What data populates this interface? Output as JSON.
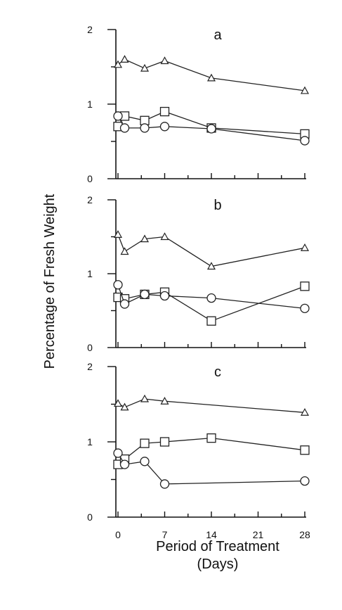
{
  "chart_data": {
    "type": "line",
    "ylabel": "Percentage of Fresh Weight",
    "xlabel_line1": "Period of Treatment",
    "xlabel_line2": "(Days)",
    "xlim": [
      0,
      28
    ],
    "xticks": [
      0,
      7,
      14,
      21,
      28
    ],
    "ylim": [
      0,
      2
    ],
    "yticks": [
      0,
      1,
      2
    ],
    "grid": false,
    "legend": "none",
    "panels": [
      {
        "label": "a",
        "series": [
          {
            "marker": "triangle",
            "x": [
              0,
              1,
              4,
              7,
              14,
              28
            ],
            "values": [
              1.53,
              1.6,
              1.48,
              1.58,
              1.35,
              1.18
            ]
          },
          {
            "marker": "square",
            "x": [
              0,
              1,
              4,
              7,
              14,
              28
            ],
            "values": [
              0.7,
              0.84,
              0.78,
              0.9,
              0.68,
              0.6
            ]
          },
          {
            "marker": "circle",
            "x": [
              0,
              1,
              4,
              7,
              14,
              28
            ],
            "values": [
              0.84,
              0.68,
              0.68,
              0.7,
              0.67,
              0.51
            ]
          }
        ]
      },
      {
        "label": "b",
        "series": [
          {
            "marker": "triangle",
            "x": [
              0,
              1,
              4,
              7,
              14,
              28
            ],
            "values": [
              1.53,
              1.3,
              1.47,
              1.5,
              1.1,
              1.35
            ]
          },
          {
            "marker": "square",
            "x": [
              0,
              1,
              4,
              7,
              14,
              28
            ],
            "values": [
              0.68,
              0.66,
              0.72,
              0.75,
              0.36,
              0.83
            ]
          },
          {
            "marker": "circle",
            "x": [
              0,
              1,
              4,
              7,
              14,
              28
            ],
            "values": [
              0.85,
              0.59,
              0.72,
              0.7,
              0.67,
              0.53
            ]
          }
        ]
      },
      {
        "label": "c",
        "series": [
          {
            "marker": "triangle",
            "x": [
              0,
              1,
              4,
              7,
              28
            ],
            "values": [
              1.51,
              1.46,
              1.57,
              1.54,
              1.39
            ]
          },
          {
            "marker": "square",
            "x": [
              0,
              1,
              4,
              7,
              14,
              28
            ],
            "values": [
              0.7,
              0.77,
              0.98,
              1.0,
              1.05,
              0.89
            ]
          },
          {
            "marker": "circle",
            "x": [
              0,
              1,
              4,
              7,
              28
            ],
            "values": [
              0.85,
              0.7,
              0.74,
              0.44,
              0.48
            ]
          }
        ]
      }
    ]
  }
}
